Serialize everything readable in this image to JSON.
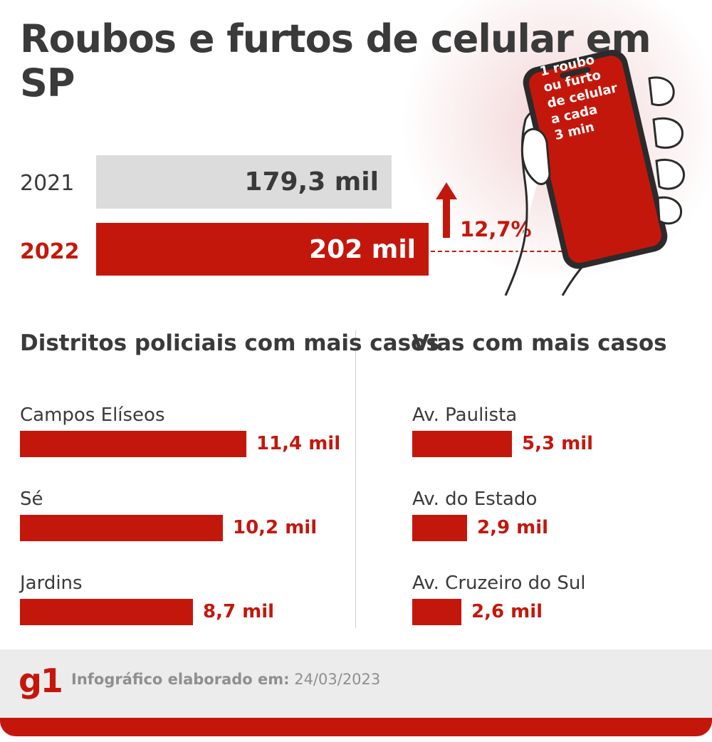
{
  "title": "Roubos e furtos de celular em SP",
  "chart_data": [
    {
      "type": "bar",
      "orientation": "horizontal",
      "title": "Roubos e furtos de celular em SP",
      "categories": [
        "2021",
        "2022"
      ],
      "values": [
        179.3,
        202
      ],
      "value_labels": [
        "179,3 mil",
        "202 mil"
      ],
      "unit": "mil",
      "annotation": "12,7%",
      "colors": [
        "#dcdcdc",
        "#c4170c"
      ]
    },
    {
      "type": "bar",
      "orientation": "horizontal",
      "title": "Distritos policiais com mais casos",
      "categories": [
        "Campos Elíseos",
        "Sé",
        "Jardins"
      ],
      "values": [
        11.4,
        10.2,
        8.7
      ],
      "value_labels": [
        "11,4 mil",
        "10,2 mil",
        "8,7 mil"
      ],
      "unit": "mil",
      "color": "#c4170c"
    },
    {
      "type": "bar",
      "orientation": "horizontal",
      "title": "Vias com mais casos",
      "categories": [
        "Av. Paulista",
        "Av. do Estado",
        "Av. Cruzeiro do Sul"
      ],
      "values": [
        5.3,
        2.9,
        2.6
      ],
      "value_labels": [
        "5,3 mil",
        "2,9 mil",
        "2,6 mil"
      ],
      "unit": "mil",
      "color": "#c4170c"
    }
  ],
  "phone_message": [
    "1 roubo",
    "ou furto",
    "de celular",
    "a cada",
    "3 min"
  ],
  "footer": {
    "logo": "g1",
    "credit_label": "Infográfico elaborado em:",
    "date": "24/03/2023"
  },
  "colors": {
    "accent": "#c4170c",
    "bar_2021": "#dcdcdc",
    "text": "#3a3a3a",
    "footer_bg": "#ececec"
  },
  "icons": [
    "arrow-up-icon",
    "hand-holding-phone-icon"
  ]
}
